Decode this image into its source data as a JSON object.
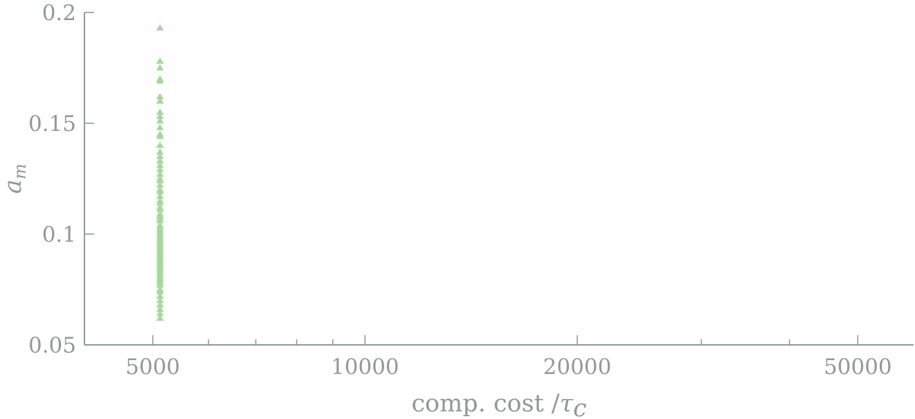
{
  "chart_data": {
    "type": "scatter",
    "x_scale": "log",
    "xlim": [
      4000,
      60000
    ],
    "ylim": [
      0.05,
      0.2
    ],
    "x_ticks": [
      {
        "value": 5000,
        "label": "5000"
      },
      {
        "value": 10000,
        "label": "10000"
      },
      {
        "value": 20000,
        "label": "20000"
      },
      {
        "value": 50000,
        "label": "50000"
      }
    ],
    "x_minor_ticks": [
      6000,
      7000,
      8000,
      9000,
      30000,
      40000
    ],
    "y_ticks": [
      {
        "value": 0.05,
        "label": "0.05"
      },
      {
        "value": 0.1,
        "label": "0.1"
      },
      {
        "value": 0.15,
        "label": "0.15"
      },
      {
        "value": 0.2,
        "label": "0.2"
      }
    ],
    "xlabel": {
      "main": "comp. cost /",
      "symbol": "τ",
      "subscript": "c"
    },
    "ylabel": {
      "symbol": "a",
      "subscript": "m"
    },
    "grid": false,
    "marker": "triangle-up",
    "marker_color": "#a6d89b",
    "axis_color": "#8e9a96",
    "series": [
      {
        "x": [
          5120,
          5120,
          5120,
          5120,
          5120,
          5120,
          5120,
          5120,
          5120,
          5120,
          5120,
          5120,
          5120,
          5120,
          5120,
          5120,
          5120,
          5120,
          5120,
          5120,
          5120,
          5120,
          5120,
          5120,
          5120,
          5120,
          5120,
          5120,
          5120,
          5120,
          5120,
          5120,
          5120,
          5120,
          5120,
          5120,
          5120,
          5120,
          5120,
          5120,
          5120,
          5120,
          5120,
          5120,
          5120,
          5120,
          5120,
          5120,
          5120,
          5120,
          5120,
          5120,
          5120,
          5120,
          5120,
          5120,
          5120,
          5120,
          5120,
          5120,
          5120,
          5120,
          5120,
          5120,
          5120,
          5120,
          5120,
          5120,
          5120,
          5120
        ],
        "y": [
          0.193,
          0.178,
          0.175,
          0.17,
          0.169,
          0.162,
          0.16,
          0.155,
          0.153,
          0.151,
          0.148,
          0.145,
          0.144,
          0.14,
          0.137,
          0.135,
          0.133,
          0.131,
          0.129,
          0.127,
          0.125,
          0.124,
          0.122,
          0.12,
          0.119,
          0.117,
          0.115,
          0.114,
          0.112,
          0.111,
          0.109,
          0.108,
          0.107,
          0.106,
          0.104,
          0.103,
          0.102,
          0.101,
          0.1,
          0.099,
          0.098,
          0.097,
          0.096,
          0.095,
          0.094,
          0.093,
          0.092,
          0.091,
          0.09,
          0.089,
          0.088,
          0.087,
          0.086,
          0.085,
          0.084,
          0.083,
          0.082,
          0.081,
          0.08,
          0.079,
          0.078,
          0.077,
          0.075,
          0.074,
          0.072,
          0.07,
          0.068,
          0.066,
          0.064,
          0.062
        ]
      }
    ]
  }
}
